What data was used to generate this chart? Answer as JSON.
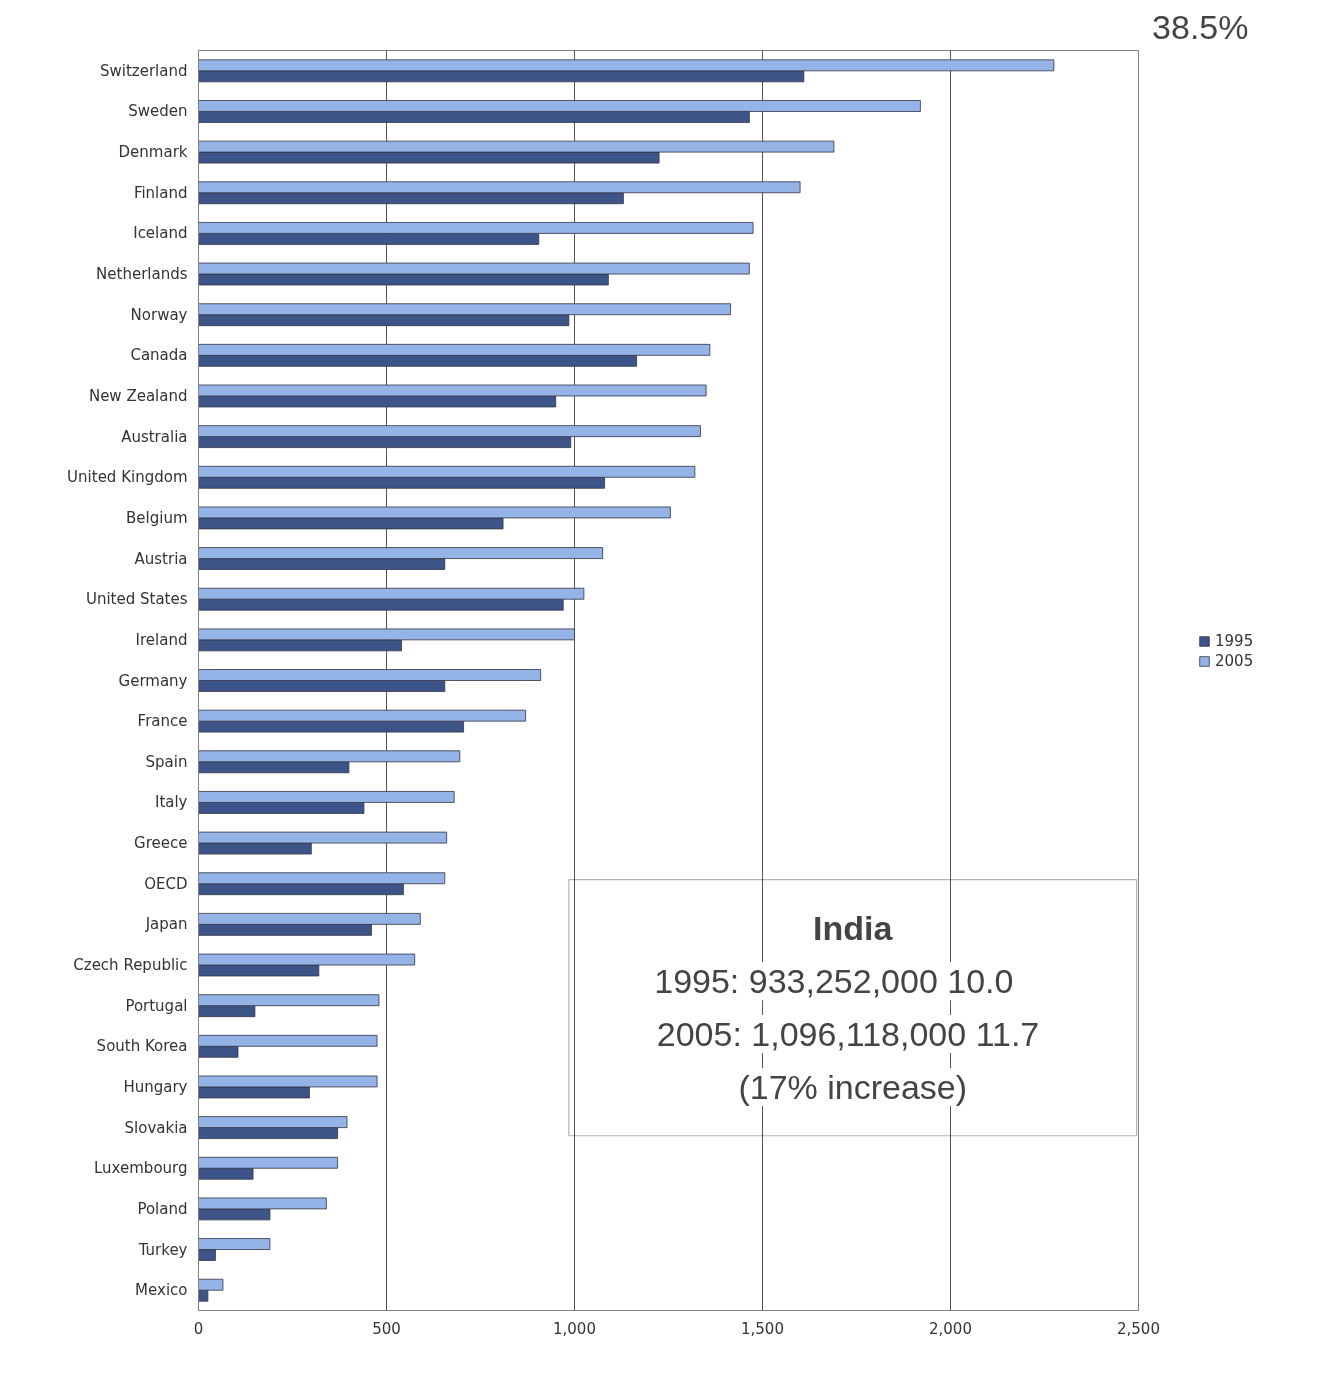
{
  "chart_data": {
    "type": "bar",
    "orientation": "horizontal",
    "categories": [
      "Switzerland",
      "Sweden",
      "Denmark",
      "Finland",
      "Iceland",
      "Netherlands",
      "Norway",
      "Canada",
      "New Zealand",
      "Australia",
      "United Kingdom",
      "Belgium",
      "Austria",
      "United States",
      "Ireland",
      "Germany",
      "France",
      "Spain",
      "Italy",
      "Greece",
      "OECD",
      "Japan",
      "Czech Republic",
      "Portugal",
      "South Korea",
      "Hungary",
      "Slovakia",
      "Luxembourg",
      "Poland",
      "Turkey",
      "Mexico"
    ],
    "series": [
      {
        "name": "1995",
        "color": "#3d5488",
        "values": [
          1610,
          1465,
          1225,
          1130,
          905,
          1090,
          985,
          1165,
          950,
          990,
          1080,
          810,
          655,
          970,
          540,
          655,
          705,
          400,
          440,
          300,
          545,
          460,
          320,
          150,
          105,
          295,
          370,
          145,
          190,
          45,
          25
        ]
      },
      {
        "name": "2005",
        "color": "#94b3e6",
        "values": [
          2275,
          1920,
          1690,
          1600,
          1475,
          1465,
          1415,
          1360,
          1350,
          1335,
          1320,
          1255,
          1075,
          1025,
          1000,
          910,
          870,
          695,
          680,
          660,
          655,
          590,
          575,
          480,
          475,
          475,
          395,
          370,
          340,
          190,
          65
        ]
      }
    ],
    "xlim": [
      0,
      2500
    ],
    "xticks": [
      0,
      {
        "value": 500,
        "label": "500"
      },
      {
        "value": 1000,
        "label": "1,000"
      },
      {
        "value": 1500,
        "label": "1,500"
      },
      {
        "value": 2000,
        "label": "2,000"
      },
      {
        "value": 2500,
        "label": "2,500"
      }
    ],
    "grid": "x",
    "legend": "right",
    "annotations": [
      "38.5%",
      "India",
      "1995:     933,252,000 10.0",
      "2005:  1,096,118,000 11.7",
      "(17% increase)"
    ]
  }
}
